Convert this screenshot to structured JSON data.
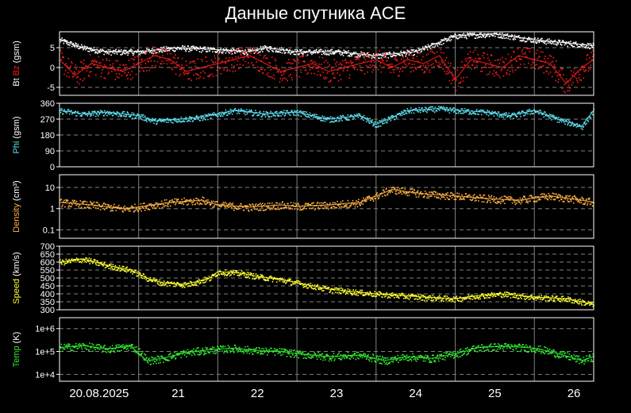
{
  "title": "Данные спутника ACE",
  "x_labels": [
    "20.08.2025",
    "21",
    "22",
    "23",
    "24",
    "25",
    "26"
  ],
  "colors": {
    "background": "#000000",
    "frame": "#ffffff",
    "grid": "#7f7f7f",
    "bt": "#ffffff",
    "bz": "#ff1a1a",
    "phi": "#5ee0ee",
    "density": "#ffb347",
    "speed": "#ffff33",
    "temp": "#33ee33"
  },
  "chart_data": [
    {
      "type": "scatter",
      "title": "",
      "ylabel_parts": [
        {
          "text": "Bt",
          "color": "#ffffff"
        },
        {
          "text": " Bz",
          "color": "#ff1a1a"
        },
        {
          "text": " (gsm)",
          "color": "#ffffff"
        }
      ],
      "ylim": [
        -7,
        9
      ],
      "yticks": [
        {
          "v": -5,
          "label": "-5"
        },
        {
          "v": 0,
          "label": "0"
        },
        {
          "v": 5,
          "label": "5"
        }
      ],
      "log": false,
      "series": [
        {
          "name": "Bt",
          "color": "#ffffff",
          "x": [
            0,
            0.3,
            0.6,
            1.0,
            1.5,
            2.0,
            2.4,
            2.6,
            3.0,
            3.5,
            4.0,
            4.5,
            5.0,
            5.5,
            6.0,
            6.5,
            6.75
          ],
          "y": [
            7,
            5,
            4,
            4,
            5,
            4.5,
            4,
            5,
            4,
            4,
            3,
            4,
            8,
            8.5,
            7,
            6,
            5.5
          ]
        },
        {
          "name": "Bz",
          "color": "#ff1a1a",
          "x": [
            0,
            0.2,
            0.4,
            0.6,
            0.8,
            1.0,
            1.2,
            1.4,
            1.6,
            1.8,
            2.0,
            2.2,
            2.4,
            2.6,
            2.8,
            3.0,
            3.2,
            3.4,
            3.6,
            3.8,
            4.0,
            4.2,
            4.4,
            4.6,
            4.8,
            5.0,
            5.2,
            5.4,
            5.6,
            5.8,
            6.0,
            6.2,
            6.4,
            6.6,
            6.75
          ],
          "y": [
            2,
            -2,
            1,
            0,
            -1,
            1,
            3,
            2,
            -1,
            0,
            1,
            2,
            3,
            1,
            -1,
            0,
            1,
            -1,
            0,
            1,
            2,
            0,
            2,
            1,
            3,
            -3,
            2,
            1,
            0,
            3,
            2,
            1,
            -4,
            0,
            2
          ]
        }
      ]
    },
    {
      "type": "scatter",
      "title": "",
      "ylabel_parts": [
        {
          "text": "Phi",
          "color": "#5ee0ee"
        },
        {
          "text": " (gsm)",
          "color": "#ffffff"
        }
      ],
      "ylim": [
        0,
        360
      ],
      "yticks": [
        {
          "v": 0,
          "label": "0"
        },
        {
          "v": 90,
          "label": "90"
        },
        {
          "v": 180,
          "label": "180"
        },
        {
          "v": 270,
          "label": "270"
        },
        {
          "v": 360,
          "label": "360"
        }
      ],
      "log": false,
      "series": [
        {
          "name": "Phi",
          "color": "#5ee0ee",
          "x": [
            0,
            0.3,
            0.6,
            1.0,
            1.2,
            1.5,
            1.8,
            2.2,
            2.6,
            3.0,
            3.4,
            3.8,
            4.0,
            4.4,
            4.8,
            5.0,
            5.4,
            5.7,
            6.0,
            6.3,
            6.6,
            6.75
          ],
          "y": [
            320,
            300,
            310,
            290,
            260,
            270,
            280,
            320,
            300,
            310,
            270,
            290,
            240,
            320,
            330,
            320,
            310,
            290,
            320,
            270,
            230,
            320
          ]
        }
      ]
    },
    {
      "type": "scatter",
      "title": "",
      "ylabel_parts": [
        {
          "text": "Density",
          "color": "#ffb347"
        },
        {
          "text": " (cm³)",
          "color": "#ffffff"
        }
      ],
      "ylim": [
        0.04,
        40
      ],
      "yticks": [
        {
          "v": 0.1,
          "label": "0.1"
        },
        {
          "v": 1,
          "label": "1"
        },
        {
          "v": 10,
          "label": "10"
        }
      ],
      "log": true,
      "series": [
        {
          "name": "Density",
          "color": "#ffb347",
          "x": [
            0,
            0.4,
            0.8,
            1.0,
            1.4,
            1.8,
            2.0,
            2.4,
            2.8,
            3.0,
            3.4,
            3.8,
            4.0,
            4.2,
            4.6,
            5.0,
            5.4,
            5.8,
            6.2,
            6.6,
            6.75
          ],
          "y": [
            2,
            1.5,
            1,
            1.2,
            2,
            2.5,
            1.5,
            1.2,
            1.5,
            1.3,
            1.5,
            2,
            4,
            8,
            5,
            4,
            3,
            2.5,
            4,
            2.5,
            2
          ]
        }
      ]
    },
    {
      "type": "scatter",
      "title": "",
      "ylabel_parts": [
        {
          "text": "Speed",
          "color": "#ffff33"
        },
        {
          "text": " (km/s)",
          "color": "#ffffff"
        }
      ],
      "ylim": [
        300,
        700
      ],
      "yticks": [
        {
          "v": 300,
          "label": "300"
        },
        {
          "v": 350,
          "label": "350"
        },
        {
          "v": 400,
          "label": "400"
        },
        {
          "v": 450,
          "label": "450"
        },
        {
          "v": 500,
          "label": "500"
        },
        {
          "v": 550,
          "label": "550"
        },
        {
          "v": 600,
          "label": "600"
        },
        {
          "v": 650,
          "label": "650"
        },
        {
          "v": 700,
          "label": "700"
        }
      ],
      "log": false,
      "series": [
        {
          "name": "Speed",
          "color": "#ffff33",
          "x": [
            0,
            0.3,
            0.6,
            0.9,
            1.1,
            1.3,
            1.6,
            1.9,
            2.0,
            2.3,
            2.5,
            2.8,
            3.0,
            3.4,
            3.8,
            4.0,
            4.3,
            4.6,
            5.0,
            5.3,
            5.6,
            6.0,
            6.4,
            6.7,
            6.75
          ],
          "y": [
            600,
            620,
            580,
            550,
            500,
            470,
            460,
            500,
            540,
            530,
            510,
            490,
            470,
            430,
            410,
            400,
            390,
            380,
            370,
            390,
            400,
            380,
            370,
            340,
            330
          ]
        }
      ]
    },
    {
      "type": "scatter",
      "title": "",
      "ylabel_parts": [
        {
          "text": "Temp",
          "color": "#33ee33"
        },
        {
          "text": " (K)",
          "color": "#ffffff"
        }
      ],
      "ylim": [
        5000,
        3000000
      ],
      "yticks": [
        {
          "v": 10000,
          "label": "1e+4"
        },
        {
          "v": 100000,
          "label": "1e+5"
        },
        {
          "v": 1000000,
          "label": "1e+6"
        }
      ],
      "log": true,
      "series": [
        {
          "name": "Temp",
          "color": "#33ee33",
          "x": [
            0,
            0.3,
            0.6,
            0.9,
            1.1,
            1.3,
            1.6,
            1.9,
            2.2,
            2.5,
            2.8,
            3.0,
            3.4,
            3.8,
            4.1,
            4.4,
            4.7,
            5.0,
            5.3,
            5.6,
            6.0,
            6.3,
            6.6,
            6.75
          ],
          "y": [
            150000,
            180000,
            130000,
            170000,
            40000,
            50000,
            90000,
            120000,
            140000,
            110000,
            100000,
            80000,
            60000,
            70000,
            40000,
            60000,
            50000,
            80000,
            150000,
            170000,
            140000,
            80000,
            40000,
            60000
          ]
        }
      ]
    }
  ]
}
